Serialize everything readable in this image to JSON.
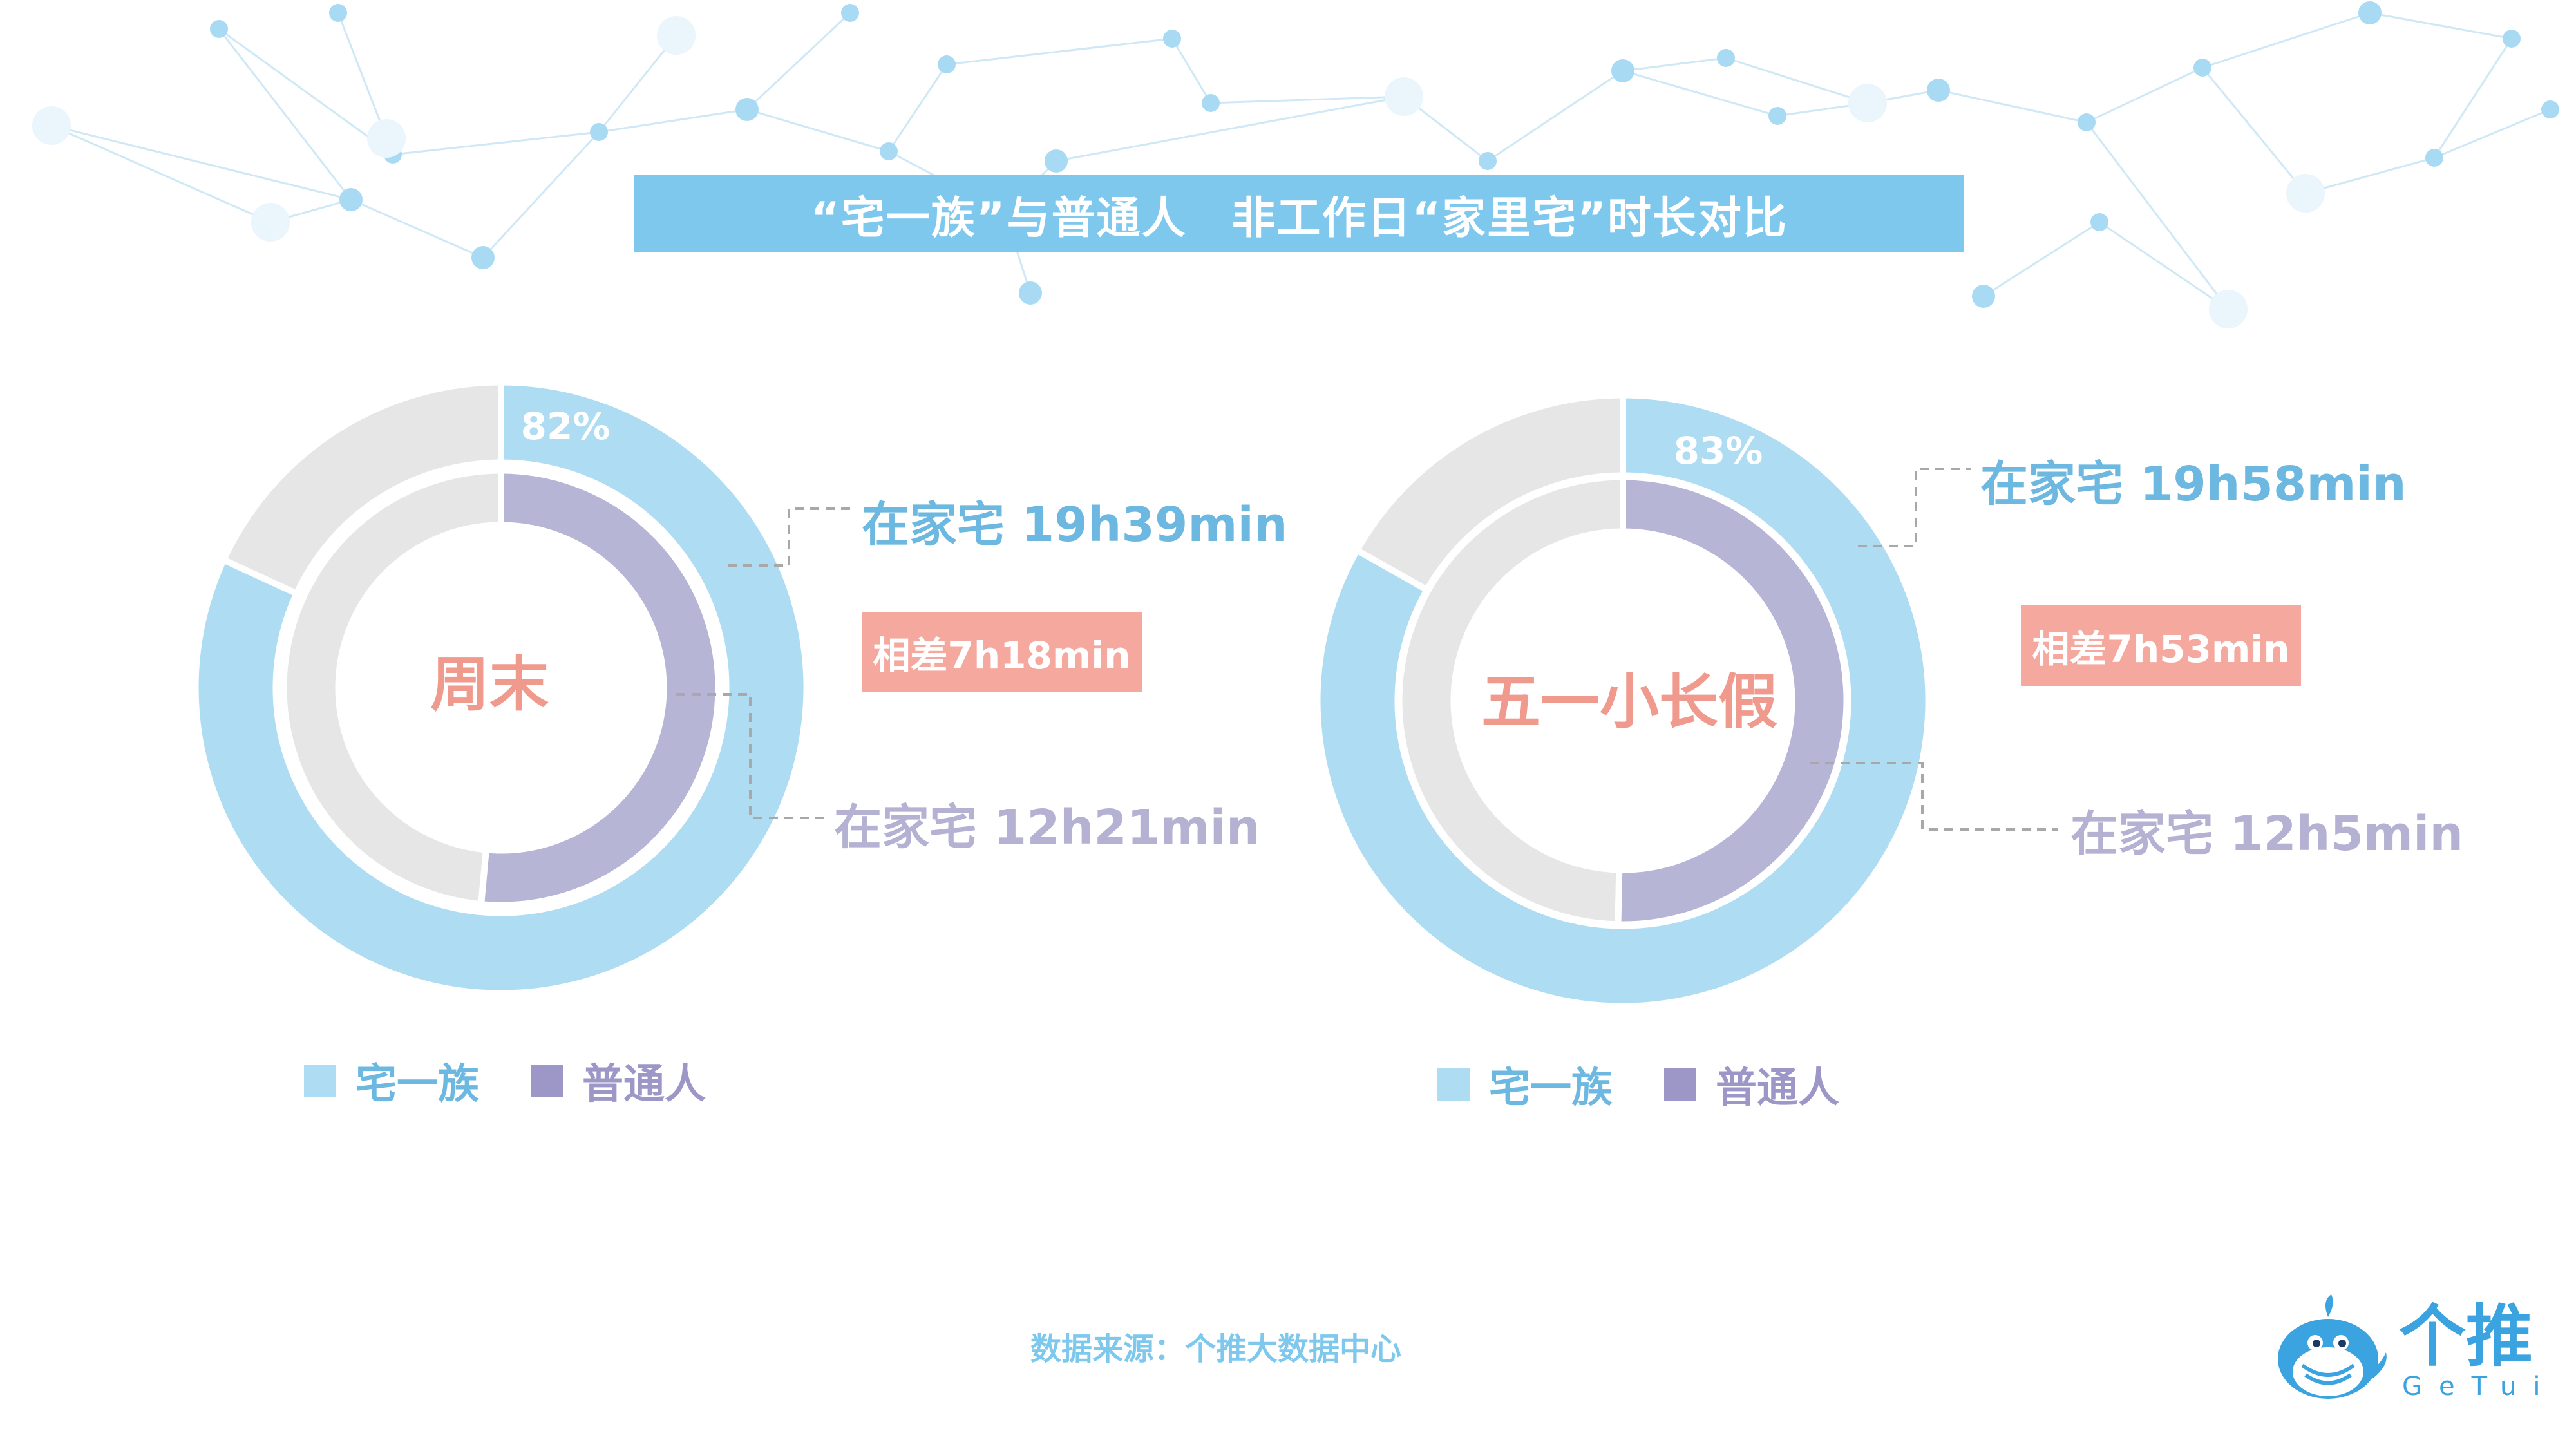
{
  "title": "“宅一族”与普通人　非工作日“家里宅”时长对比",
  "colors": {
    "zhai": "#aedcf3",
    "normal": "#b7b5d6",
    "rest": "#e6e6e6",
    "accent_text": "#f09a8e",
    "diff_bg": "#f5a99e"
  },
  "chart_data": [
    {
      "type": "donut",
      "center_label": "周末",
      "series": [
        {
          "name": "宅一族",
          "percent": 82,
          "percent_label": "82%",
          "label": "在家宅 19h39min",
          "minutes": 1179
        },
        {
          "name": "普通人",
          "label": "在家宅 12h21min",
          "minutes": 741
        }
      ],
      "difference_label": "相差7h18min"
    },
    {
      "type": "donut",
      "center_label": "五一小长假",
      "series": [
        {
          "name": "宅一族",
          "percent": 83,
          "percent_label": "83%",
          "label": "在家宅 19h58min",
          "minutes": 1198
        },
        {
          "name": "普通人",
          "label": "在家宅 12h5min",
          "minutes": 725
        }
      ],
      "difference_label": "相差7h53min"
    }
  ],
  "legend": [
    {
      "name": "宅一族",
      "icon": "square-swatch"
    },
    {
      "name": "普通人",
      "icon": "square-swatch"
    }
  ],
  "source": "数据来源：个推大数据中心",
  "logo": {
    "cn": "个推",
    "en": "GeTui",
    "icon": "whale-mascot-icon"
  }
}
